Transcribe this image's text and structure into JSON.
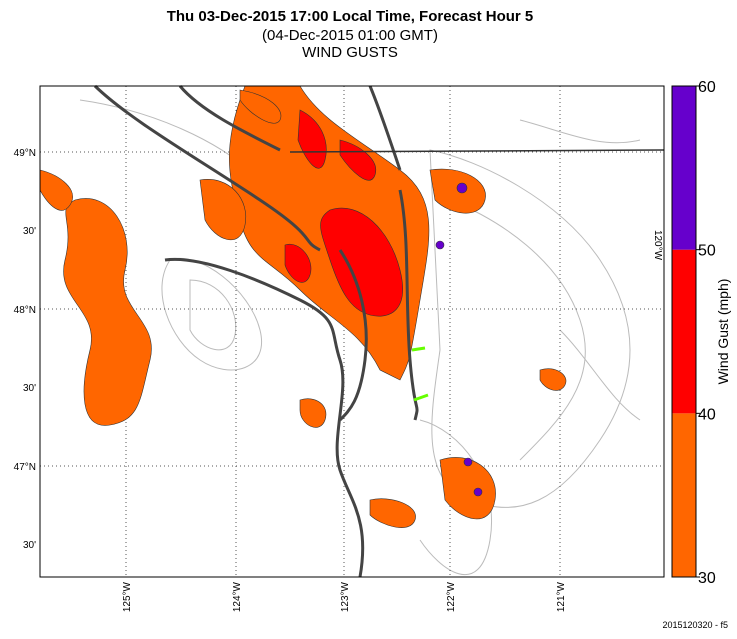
{
  "header": {
    "title": "Thu 03-Dec-2015 17:00 Local Time, Forecast Hour 5",
    "subtitle": "(04-Dec-2015 01:00 GMT)",
    "product": "WIND GUSTS"
  },
  "map": {
    "lat_labels": [
      "49°N",
      "30'",
      "48°N",
      "30'",
      "47°N",
      "30'"
    ],
    "lon_labels": [
      "125°W",
      "124°W",
      "123°W",
      "122°W",
      "121°W"
    ],
    "edge_label": "120°W"
  },
  "colorbar": {
    "label": "Wind Gust (mph)",
    "ticks": [
      30,
      40,
      50,
      60
    ],
    "bands": [
      {
        "from": 30,
        "to": 40,
        "color": "#ff6600"
      },
      {
        "from": 40,
        "to": 50,
        "color": "#ff0000"
      },
      {
        "from": 50,
        "to": 60,
        "color": "#6600cc"
      }
    ]
  },
  "footer": "2015120320 - f5"
}
